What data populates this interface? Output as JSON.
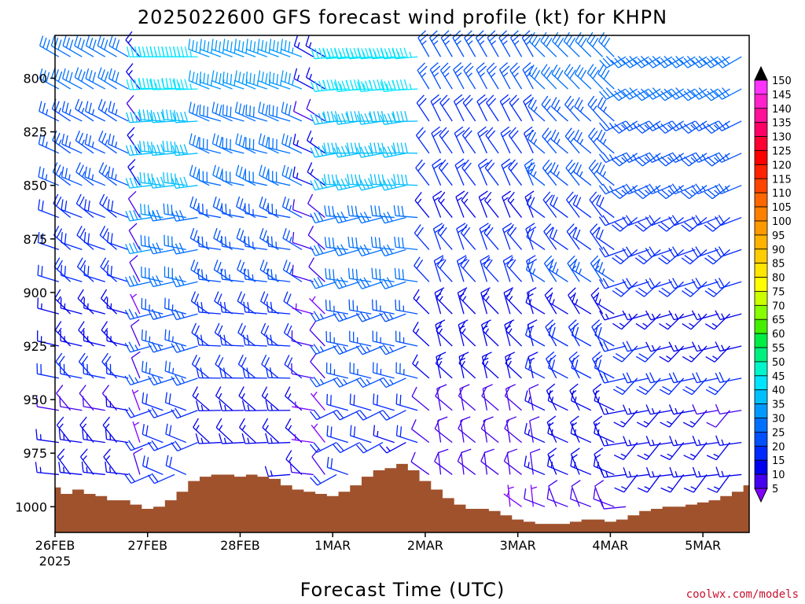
{
  "title": "2025022600 GFS forecast wind profile (kt) for KHPN",
  "credit": "coolwx.com/models",
  "chart_data": {
    "type": "wind-barb-profile",
    "title": "2025022600 GFS forecast wind profile (kt) for KHPN",
    "xlabel": "Forecast Time (UTC)",
    "ylabel": "",
    "y_axis": {
      "ticks": [
        800,
        825,
        850,
        875,
        900,
        925,
        950,
        975,
        1000
      ],
      "tick_labels": [
        "800",
        "825",
        "850",
        "875",
        "900",
        "925",
        "950",
        "975",
        "1000"
      ],
      "range": [
        780,
        1012
      ]
    },
    "x_axis": {
      "range_hours": [
        0,
        180
      ],
      "ticks": [
        {
          "hour": 0,
          "label": "26FEB",
          "sublabel": "2025"
        },
        {
          "hour": 24,
          "label": "27FEB",
          "sublabel": ""
        },
        {
          "hour": 48,
          "label": "28FEB",
          "sublabel": ""
        },
        {
          "hour": 72,
          "label": "1MAR",
          "sublabel": ""
        },
        {
          "hour": 96,
          "label": "2MAR",
          "sublabel": ""
        },
        {
          "hour": 120,
          "label": "3MAR",
          "sublabel": ""
        },
        {
          "hour": 144,
          "label": "4MAR",
          "sublabel": ""
        },
        {
          "hour": 168,
          "label": "5MAR",
          "sublabel": ""
        }
      ]
    },
    "colorbar": {
      "labels": [
        "150",
        "145",
        "140",
        "135",
        "130",
        "125",
        "120",
        "115",
        "110",
        "105",
        "100",
        "95",
        "90",
        "85",
        "80",
        "75",
        "70",
        "65",
        "60",
        "55",
        "50",
        "45",
        "40",
        "35",
        "30",
        "25",
        "20",
        "15",
        "10",
        "5"
      ],
      "colors": [
        "#ff33ff",
        "#ff22cc",
        "#ff1199",
        "#ff0066",
        "#ff0033",
        "#ff0000",
        "#ff2200",
        "#ff4400",
        "#ff6600",
        "#ff8000",
        "#ff9900",
        "#ffb300",
        "#ffcc00",
        "#ffe600",
        "#ffff00",
        "#ccff00",
        "#88ff00",
        "#44ee00",
        "#00ee44",
        "#00f080",
        "#00f5cc",
        "#00e5ff",
        "#00bfff",
        "#0099ff",
        "#0070ff",
        "#0050ff",
        "#0028ff",
        "#0000ee",
        "#4400ee",
        "#8000ff"
      ]
    },
    "levels": [
      790,
      805,
      820,
      835,
      850,
      865,
      880,
      895,
      910,
      925,
      940,
      955,
      970,
      985,
      1000
    ],
    "time_step_hours": 3,
    "surface_pressure": {
      "hours": [
        0,
        3,
        6,
        9,
        12,
        15,
        18,
        21,
        24,
        27,
        30,
        33,
        36,
        39,
        42,
        45,
        48,
        51,
        54,
        57,
        60,
        63,
        66,
        69,
        72,
        75,
        78,
        81,
        84,
        87,
        90,
        93,
        96,
        99,
        102,
        105,
        108,
        111,
        114,
        117,
        120,
        123,
        126,
        129,
        132,
        135,
        138,
        141,
        144,
        147,
        150,
        153,
        156,
        159,
        162,
        165,
        168,
        171,
        174,
        177,
        180
      ],
      "values": [
        991,
        994,
        992,
        994,
        995,
        997,
        997,
        999,
        1001,
        1000,
        997,
        993,
        988,
        986,
        985,
        985,
        986,
        985,
        986,
        987,
        990,
        992,
        993,
        994,
        995,
        993,
        990,
        986,
        983,
        982,
        980,
        983,
        988,
        992,
        996,
        999,
        1001,
        1001,
        1002,
        1004,
        1006,
        1007,
        1008,
        1008,
        1008,
        1007,
        1006,
        1006,
        1007,
        1006,
        1004,
        1002,
        1001,
        1000,
        1000,
        999,
        998,
        997,
        995,
        993,
        990
      ]
    },
    "wind_regimes": [
      {
        "from_hour": 0,
        "to_hour": 20,
        "direction_deg": 300,
        "speed_kt": 30
      },
      {
        "from_hour": 20,
        "to_hour": 24,
        "direction_deg": 320,
        "speed_kt": 15
      },
      {
        "from_hour": 24,
        "to_hour": 40,
        "direction_deg": 270,
        "speed_kt": 45
      },
      {
        "from_hour": 40,
        "to_hour": 66,
        "direction_deg": 290,
        "speed_kt": 35
      },
      {
        "from_hour": 66,
        "to_hour": 72,
        "direction_deg": 300,
        "speed_kt": 15
      },
      {
        "from_hour": 72,
        "to_hour": 96,
        "direction_deg": 265,
        "speed_kt": 45
      },
      {
        "from_hour": 96,
        "to_hour": 126,
        "direction_deg": 330,
        "speed_kt": 25
      },
      {
        "from_hour": 126,
        "to_hour": 148,
        "direction_deg": 315,
        "speed_kt": 30
      },
      {
        "from_hour": 148,
        "to_hour": 180,
        "direction_deg": 240,
        "speed_kt": 30
      }
    ],
    "grid": false
  }
}
